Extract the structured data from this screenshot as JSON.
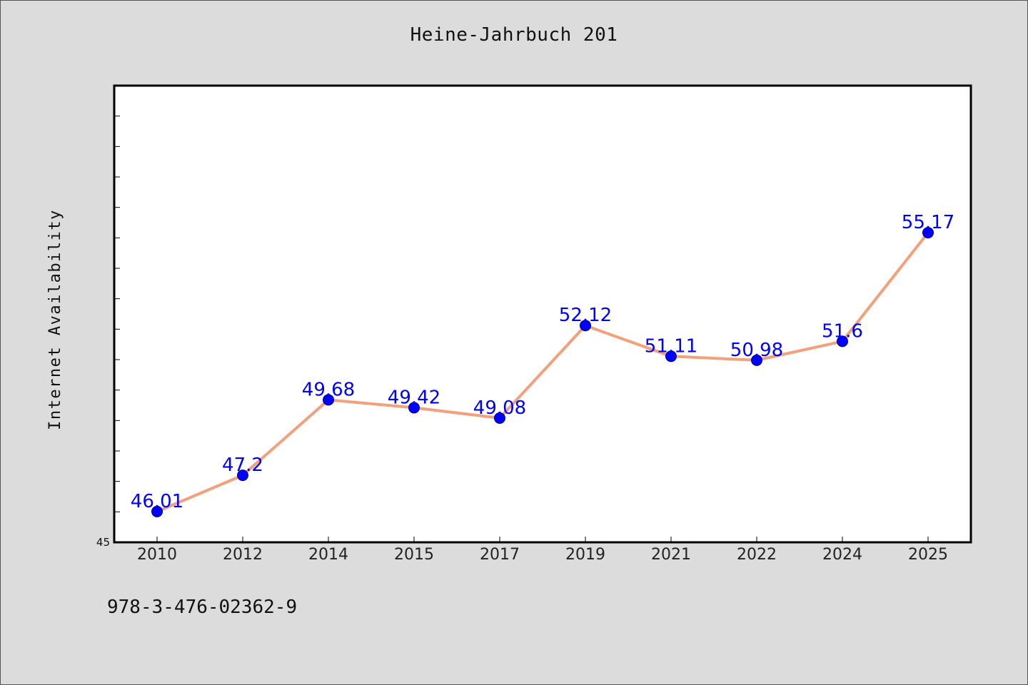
{
  "title": "Heine-Jahrbuch 201",
  "footer_text": "978-3-476-02362-9",
  "colors": {
    "background": "#dcdcdc",
    "plot_background": "#ffffff",
    "line": "#f4a07a",
    "marker": "#0000ff",
    "label": "#0000ff"
  },
  "chart_data": {
    "type": "line",
    "title": "Heine-Jahrbuch 201",
    "xlabel": "",
    "ylabel": "Internet Availability",
    "categories": [
      "2010",
      "2012",
      "2014",
      "2015",
      "2017",
      "2019",
      "2021",
      "2022",
      "2024",
      "2025"
    ],
    "series": [
      {
        "values": [
          46.01,
          47.2,
          49.68,
          49.42,
          49.08,
          52.12,
          51.11,
          50.98,
          51.6,
          55.17
        ],
        "labels": [
          "46.01",
          "47.2",
          "49.68",
          "49.42",
          "49.08",
          "52.12",
          "51.11",
          "50.98",
          "51.6",
          "55.17"
        ]
      }
    ],
    "ylim": [
      45,
      60
    ],
    "y_tick_labels": [
      "45"
    ],
    "grid": false,
    "legend": "none"
  }
}
